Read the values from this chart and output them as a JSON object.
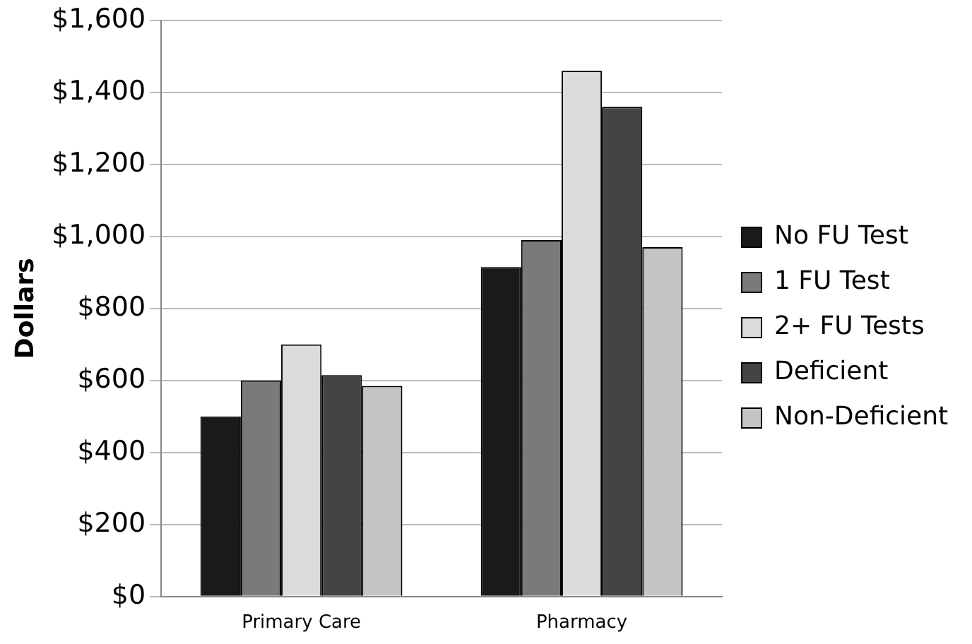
{
  "chart_data": {
    "type": "bar",
    "ylabel": "Dollars",
    "categories": [
      "Primary Care",
      "Pharmacy"
    ],
    "series": [
      {
        "name": "No FU Test",
        "color": "#1a1a1a",
        "values": [
          500,
          915
        ]
      },
      {
        "name": "1 FU Test",
        "color": "#7a7a7a",
        "values": [
          600,
          990
        ]
      },
      {
        "name": "2+ FU Tests",
        "color": "#dcdcdc",
        "values": [
          700,
          1460
        ]
      },
      {
        "name": "Deficient",
        "color": "#444444",
        "values": [
          615,
          1360
        ]
      },
      {
        "name": "Non-Deficient",
        "color": "#c4c4c4",
        "values": [
          585,
          970
        ]
      }
    ],
    "ylim": [
      0,
      1600
    ],
    "yticks": [
      {
        "value": 0,
        "label": "$0"
      },
      {
        "value": 200,
        "label": "$200"
      },
      {
        "value": 400,
        "label": "$400"
      },
      {
        "value": 600,
        "label": "$600"
      },
      {
        "value": 800,
        "label": "$800"
      },
      {
        "value": 1000,
        "label": "$1,000"
      },
      {
        "value": 1200,
        "label": "$1,200"
      },
      {
        "value": 1400,
        "label": "$1,400"
      },
      {
        "value": 1600,
        "label": "$1,600"
      }
    ],
    "grid": "y",
    "legend": "right"
  }
}
